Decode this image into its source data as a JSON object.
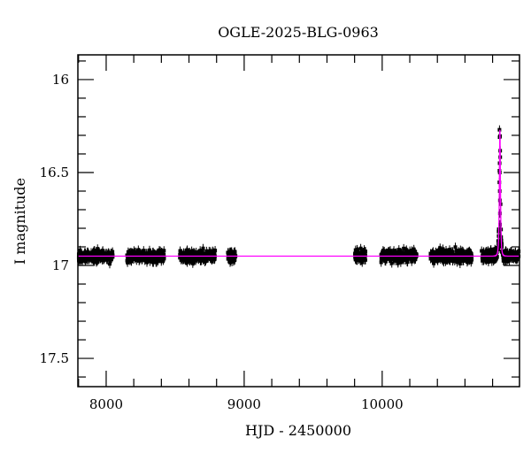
{
  "chart_data": {
    "type": "scatter",
    "title": "OGLE-2025-BLG-0963",
    "xlabel": "HJD - 2450000",
    "ylabel": "I magnitude",
    "xlim": [
      7795,
      10995
    ],
    "ylim": [
      17.652,
      15.867
    ],
    "y_inverted": true,
    "grid": false,
    "x_ticks": [
      8000,
      9000,
      10000
    ],
    "x_tick_labels": [
      "8000",
      "9000",
      "10000"
    ],
    "x_minor_step": 200,
    "y_ticks": [
      16,
      16.5,
      17,
      17.5
    ],
    "y_tick_labels": [
      "16",
      "16.5",
      "17",
      "17.5"
    ],
    "y_minor_step": 0.1,
    "colors": {
      "points": "#000000",
      "model": "#ff00ff"
    },
    "baseline_mag": 16.95,
    "baseline_scatter": 0.025,
    "seasons": [
      [
        7800,
        8050
      ],
      [
        8150,
        8420
      ],
      [
        8530,
        8790
      ],
      [
        8880,
        8940
      ],
      [
        9800,
        9880
      ],
      [
        9990,
        10250
      ],
      [
        10350,
        10650
      ],
      [
        10720,
        10990
      ]
    ],
    "model": {
      "t0": 10853,
      "peak_mag": 16.27,
      "tE": 6
    },
    "peak_points": [
      {
        "x": 10850,
        "y": 16.27
      },
      {
        "x": 10851,
        "y": 16.31
      },
      {
        "x": 10851,
        "y": 16.45
      },
      {
        "x": 10852,
        "y": 16.5
      },
      {
        "x": 10852,
        "y": 16.6
      },
      {
        "x": 10853,
        "y": 16.65
      },
      {
        "x": 10853,
        "y": 16.72
      },
      {
        "x": 10854,
        "y": 16.78
      },
      {
        "x": 10855,
        "y": 16.84
      },
      {
        "x": 10856,
        "y": 16.87
      },
      {
        "x": 10846,
        "y": 16.88
      },
      {
        "x": 10848,
        "y": 16.9
      }
    ]
  }
}
